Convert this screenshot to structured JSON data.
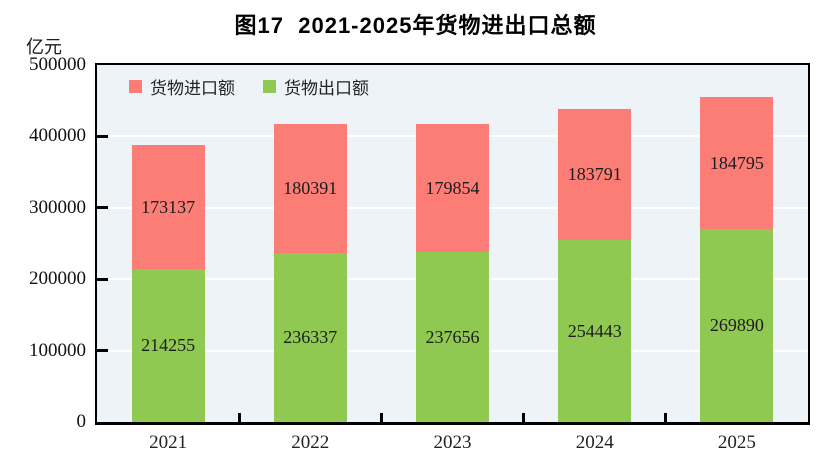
{
  "title": "图17  2021-2025年货物进出口总额",
  "unit_label": "亿元",
  "chart_data": {
    "type": "bar",
    "stacked": true,
    "title": "图17  2021-2025年货物进出口总额",
    "ylabel": "亿元",
    "xlabel": "",
    "categories": [
      "2021",
      "2022",
      "2023",
      "2024",
      "2025"
    ],
    "series": [
      {
        "name": "货物出口额",
        "color": "#8FC951",
        "values": [
          214255,
          236337,
          237656,
          254443,
          269890
        ]
      },
      {
        "name": "货物进口额",
        "color": "#FB7D75",
        "values": [
          173137,
          180391,
          179854,
          183791,
          184795
        ]
      }
    ],
    "legend": [
      {
        "label": "货物进口额",
        "color": "#FB7D75"
      },
      {
        "label": "货物出口额",
        "color": "#8FC951"
      }
    ],
    "legend_position": "top-left-inside",
    "ylim": [
      0,
      500000
    ],
    "yticks": [
      0,
      100000,
      200000,
      300000,
      400000,
      500000
    ],
    "grid": true,
    "gridline_color": "#FFFFFF",
    "plot_background": "#EDF3F7"
  }
}
